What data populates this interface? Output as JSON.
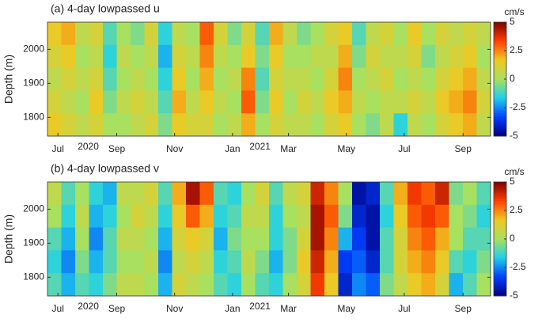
{
  "chart_data": [
    {
      "type": "heatmap",
      "title": "(a) 4-day lowpassed u",
      "ylabel": "Depth (m)",
      "colorbar_label": "cm/s",
      "xlim": [
        "2020-06-20",
        "2021-09-30"
      ],
      "xticks": [
        {
          "value": "2020-07-01",
          "label": "Jul"
        },
        {
          "value": "2020-09-01",
          "label": "Sep"
        },
        {
          "value": "2020-11-01",
          "label": "Nov"
        },
        {
          "value": "2021-01-01",
          "label": "Jan"
        },
        {
          "value": "2021-03-01",
          "label": "Mar"
        },
        {
          "value": "2021-05-01",
          "label": "May"
        },
        {
          "value": "2021-07-01",
          "label": "Jul"
        },
        {
          "value": "2021-09-01",
          "label": "Sep"
        }
      ],
      "year_labels": [
        {
          "value": "2020-08-02",
          "label": "2020"
        },
        {
          "value": "2021-01-30",
          "label": "2021"
        }
      ],
      "ylim": [
        2080,
        1745
      ],
      "yticks": [
        1800,
        1900,
        2000
      ],
      "clim": [
        -5,
        5
      ],
      "cticks": [
        5,
        2.5,
        0,
        -2.5,
        -5
      ],
      "colors": [
        "#000080",
        "#0040ff",
        "#20d0e8",
        "#a8e060",
        "#f0c820",
        "#ff4000",
        "#800000"
      ],
      "z": [
        [
          1.5,
          2,
          0.5,
          1,
          -1,
          0,
          -0.5,
          1,
          -1.5,
          0.5,
          0,
          3,
          1,
          -0.5,
          1,
          -1,
          2,
          0.5,
          -0.5,
          0,
          1,
          1.5,
          -1,
          0.5,
          1,
          0,
          1.5,
          0,
          1,
          0.5,
          1,
          0.5
        ],
        [
          1,
          1.5,
          0,
          0.5,
          -1.5,
          0.5,
          0,
          0.5,
          -2,
          1,
          0.5,
          2.5,
          0.5,
          0,
          1.5,
          -0.5,
          1.5,
          0,
          0,
          0.5,
          0.5,
          2,
          -0.5,
          1,
          0.5,
          0.5,
          1,
          -0.5,
          0.5,
          1,
          1.5,
          0
        ],
        [
          0.5,
          1,
          0.5,
          1,
          -1,
          0,
          0.5,
          0,
          -1.5,
          1.5,
          0,
          2,
          0,
          0.5,
          2.5,
          -1,
          1,
          0.5,
          0.5,
          0,
          1,
          2.5,
          0,
          0.5,
          1,
          0,
          0.5,
          0,
          1,
          1.5,
          2,
          0.5
        ],
        [
          1,
          0.5,
          0,
          1.5,
          -0.5,
          0.5,
          1,
          0.5,
          -1,
          2,
          0.5,
          1.5,
          0.5,
          0,
          3,
          -0.5,
          1.5,
          0,
          1,
          0.5,
          1.5,
          2,
          0.5,
          0,
          0.5,
          0.5,
          1,
          0.5,
          1.5,
          2,
          2.5,
          1
        ],
        [
          1.5,
          1,
          0.5,
          1,
          0,
          0,
          0.5,
          1,
          -0.5,
          1.5,
          1,
          1,
          0,
          0.5,
          2,
          0,
          1,
          0.5,
          0.5,
          0,
          1,
          1.5,
          0,
          -0.5,
          0.5,
          -1.5,
          0.5,
          0,
          1,
          1.5,
          2,
          0.5
        ]
      ]
    },
    {
      "type": "heatmap",
      "title": "(b) 4-day lowpassed v",
      "ylabel": "Depth (m)",
      "colorbar_label": "cm/s",
      "xlim": [
        "2020-06-20",
        "2021-09-30"
      ],
      "xticks": [
        {
          "value": "2020-07-01",
          "label": "Jul"
        },
        {
          "value": "2020-09-01",
          "label": "Sep"
        },
        {
          "value": "2020-11-01",
          "label": "Nov"
        },
        {
          "value": "2021-01-01",
          "label": "Jan"
        },
        {
          "value": "2021-03-01",
          "label": "Mar"
        },
        {
          "value": "2021-05-01",
          "label": "May"
        },
        {
          "value": "2021-07-01",
          "label": "Jul"
        },
        {
          "value": "2021-09-01",
          "label": "Sep"
        }
      ],
      "year_labels": [
        {
          "value": "2020-08-02",
          "label": "2020"
        },
        {
          "value": "2021-01-30",
          "label": "2021"
        }
      ],
      "ylim": [
        2080,
        1745
      ],
      "yticks": [
        1800,
        1900,
        2000
      ],
      "clim": [
        -5,
        5
      ],
      "cticks": [
        5,
        2.5,
        0,
        -2.5,
        -5
      ],
      "colors": [
        "#000080",
        "#0040ff",
        "#20d0e8",
        "#a8e060",
        "#f0c820",
        "#ff4000",
        "#800000"
      ],
      "z": [
        [
          0.5,
          -1,
          0,
          -1.5,
          -2,
          0.5,
          0.5,
          1,
          -1,
          2,
          4.5,
          3,
          -1,
          -1.5,
          0,
          1,
          -1,
          0.5,
          1,
          4,
          2.5,
          0,
          -4.5,
          -4,
          -1,
          2,
          3.5,
          3,
          4,
          -0.5,
          0,
          -1
        ],
        [
          0,
          -1.5,
          0.5,
          -2,
          -1.5,
          0,
          1,
          0.5,
          -1.5,
          1.5,
          3,
          2,
          -1.5,
          -1,
          0.5,
          0.5,
          -1.5,
          0,
          0.5,
          4.5,
          3,
          -0.5,
          -4,
          -4.5,
          -1.5,
          1.5,
          3,
          3.5,
          3,
          0,
          -0.5,
          -1.5
        ],
        [
          -1,
          -2,
          0,
          -2.5,
          -1,
          0.5,
          0.5,
          0,
          -2,
          1,
          1.5,
          1,
          -2,
          -0.5,
          0,
          0,
          -1.5,
          -0.5,
          1,
          4.5,
          2.5,
          -2,
          -3.5,
          -4.5,
          -1,
          1,
          2.5,
          3,
          2,
          0,
          -1,
          -1
        ],
        [
          -1.5,
          -2.5,
          -0.5,
          -2,
          -1,
          0,
          0,
          0.5,
          -2.5,
          0.5,
          1,
          0.5,
          -1.5,
          -1,
          0.5,
          -0.5,
          -2,
          -0.5,
          1.5,
          4,
          2,
          -3.5,
          -3,
          -4,
          -1,
          1,
          2,
          2.5,
          1.5,
          -1,
          -1.5,
          -0.5
        ],
        [
          -1,
          -2,
          -1,
          -1.5,
          -0.5,
          0.5,
          0.5,
          0,
          -2,
          1,
          0.5,
          0,
          -1,
          -1.5,
          0,
          -1,
          -1.5,
          0,
          1,
          3.5,
          1.5,
          -4,
          -2.5,
          -3,
          -0.5,
          0.5,
          1.5,
          2,
          1,
          -2,
          -1,
          0
        ]
      ]
    }
  ]
}
